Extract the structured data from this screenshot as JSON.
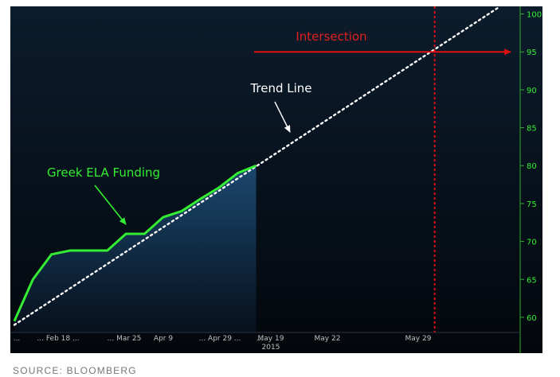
{
  "chart_data": {
    "type": "line",
    "title": "",
    "xlabel": "",
    "ylabel": "",
    "ylim": [
      58,
      101
    ],
    "y_axis_side": "right",
    "y_ticks": [
      60,
      65,
      70,
      75,
      80,
      85,
      90,
      95,
      100
    ],
    "x_tick_labels": [
      "...",
      "... Feb 18 ...",
      "... Mar 25",
      "Apr 9",
      "... Apr 29 ...",
      "...",
      "May 19",
      "May 22",
      "May 29"
    ],
    "x_year_label": "2015",
    "series": [
      {
        "name": "Greek ELA Funding",
        "color": "#33ee33",
        "x": [
          0,
          1,
          2,
          3,
          4,
          5,
          6,
          7,
          8,
          9,
          10,
          11,
          12,
          13
        ],
        "values": [
          59.5,
          65.0,
          68.3,
          68.8,
          68.8,
          68.8,
          71.0,
          71.0,
          73.2,
          74.0,
          75.6,
          77.1,
          79.0,
          80.0
        ]
      }
    ],
    "trend_line": {
      "name": "Trend Line",
      "color": "#ffffff",
      "style": "dotted",
      "x_start": 0,
      "y_start": 59.0,
      "x_end": 26,
      "y_end": 100.8
    },
    "intersection": {
      "label": "Intersection",
      "color": "#dd1111",
      "x": 22.6,
      "y": 95
    },
    "annotations": {
      "ela_label": "Greek ELA Funding",
      "trend_label": "Trend Line",
      "intersection_label": "Intersection"
    },
    "x_domain": [
      0,
      26
    ],
    "colors": {
      "background_top": "#0c1c2c",
      "background_bottom": "#03070c",
      "area_fill_top": "#1c4a72",
      "area_fill_bottom": "#07101c",
      "axis_text": "#33ee33",
      "x_tick_text": "#bfbfbf"
    },
    "grid": false,
    "legend": "none"
  },
  "source": "SOURCE: BLOOMBERG"
}
